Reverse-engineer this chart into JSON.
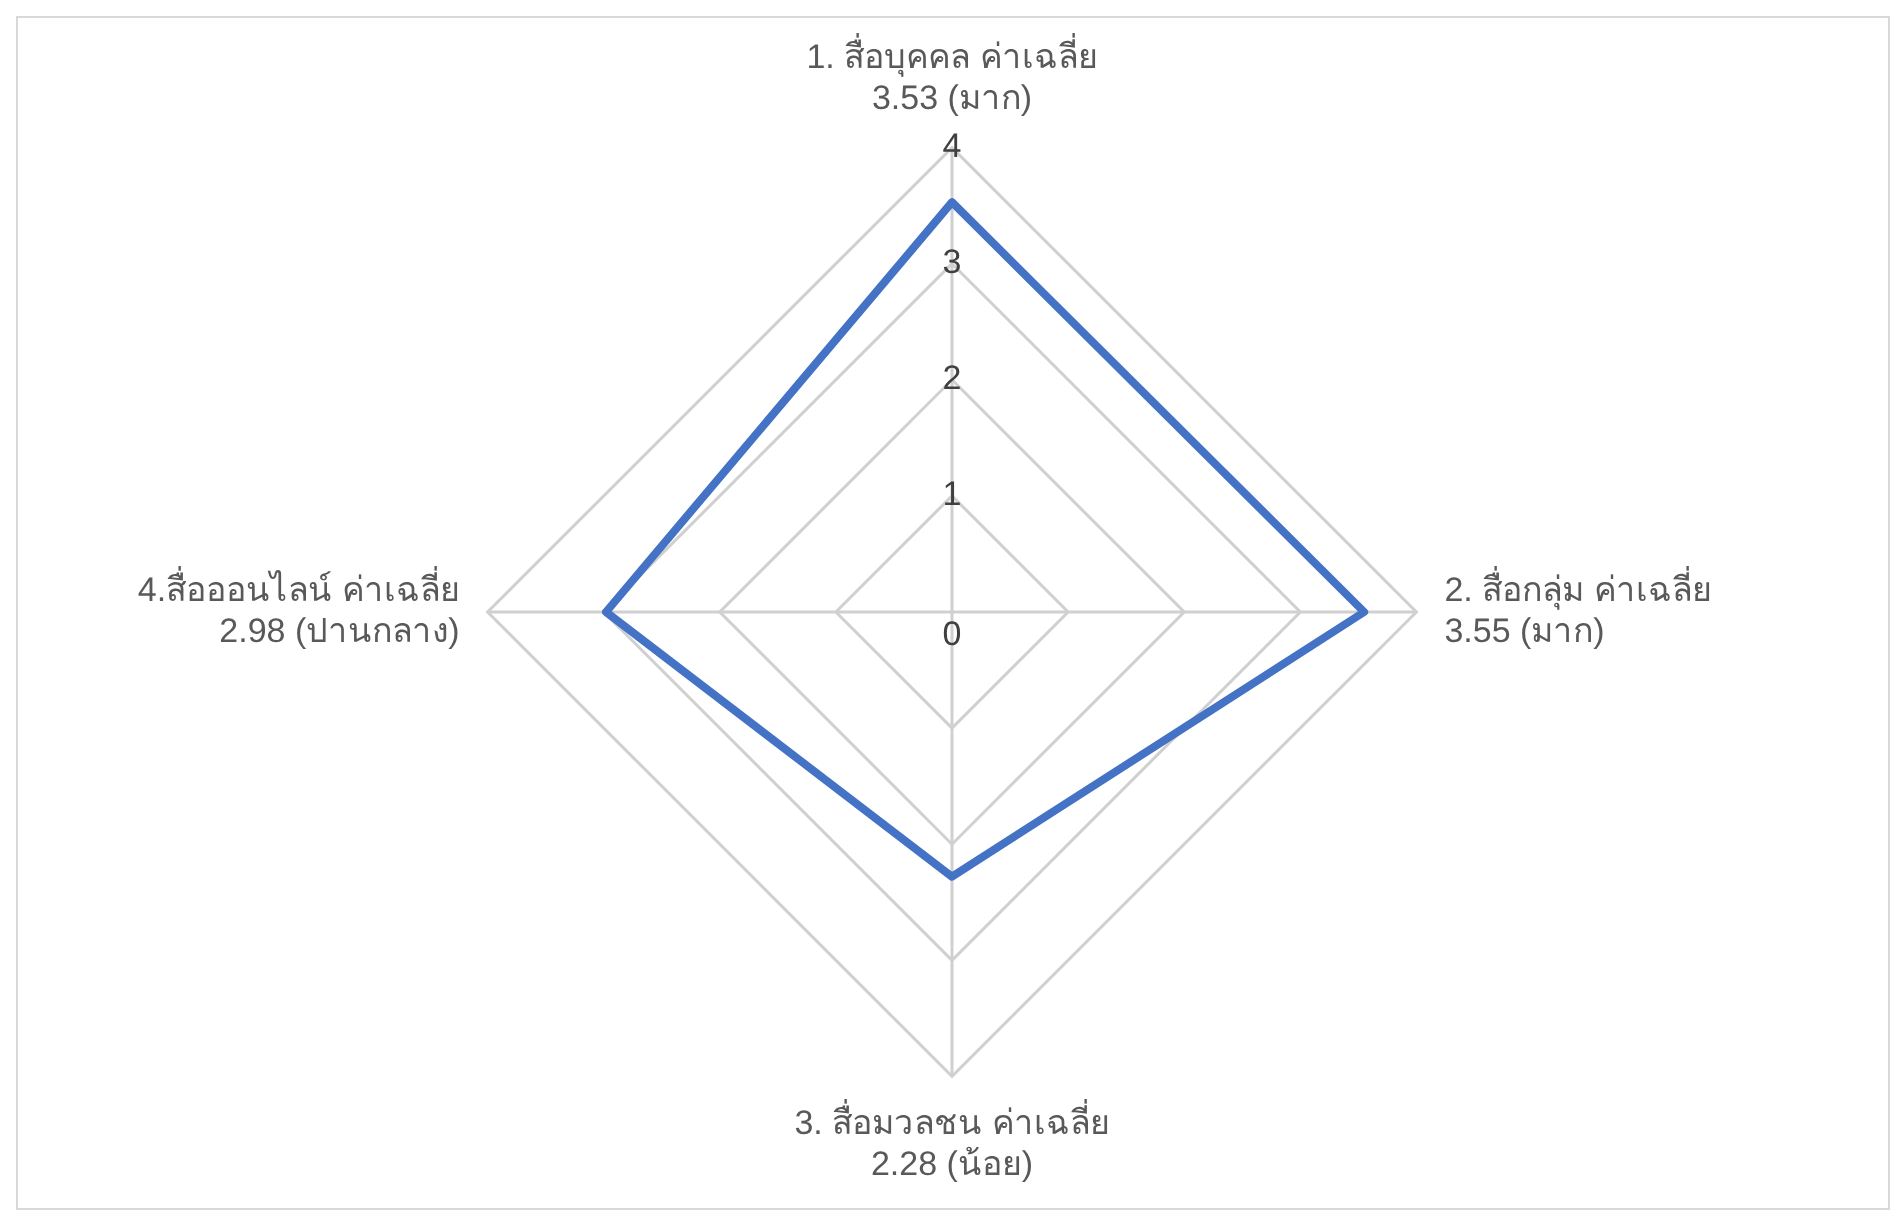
{
  "chart_data": {
    "type": "radar",
    "categories": [
      "1. สื่อบุคคล ค่าเฉลี่ย 3.53 (มาก)",
      "2. สื่อกลุ่ม ค่าเฉลี่ย 3.55 (มาก)",
      "3. สื่อมวลชน ค่าเฉลี่ย 2.28 (น้อย)",
      "4.สื่อออนไลน์ ค่าเฉลี่ย 2.98 (ปานกลาง)"
    ],
    "series": [
      {
        "color": "#4472c4",
        "values": [
          3.53,
          3.55,
          2.28,
          2.98
        ]
      }
    ],
    "ylim": [
      0,
      4
    ],
    "yticks": [
      0,
      1,
      2,
      3,
      4
    ],
    "grid": true,
    "legend": false
  }
}
